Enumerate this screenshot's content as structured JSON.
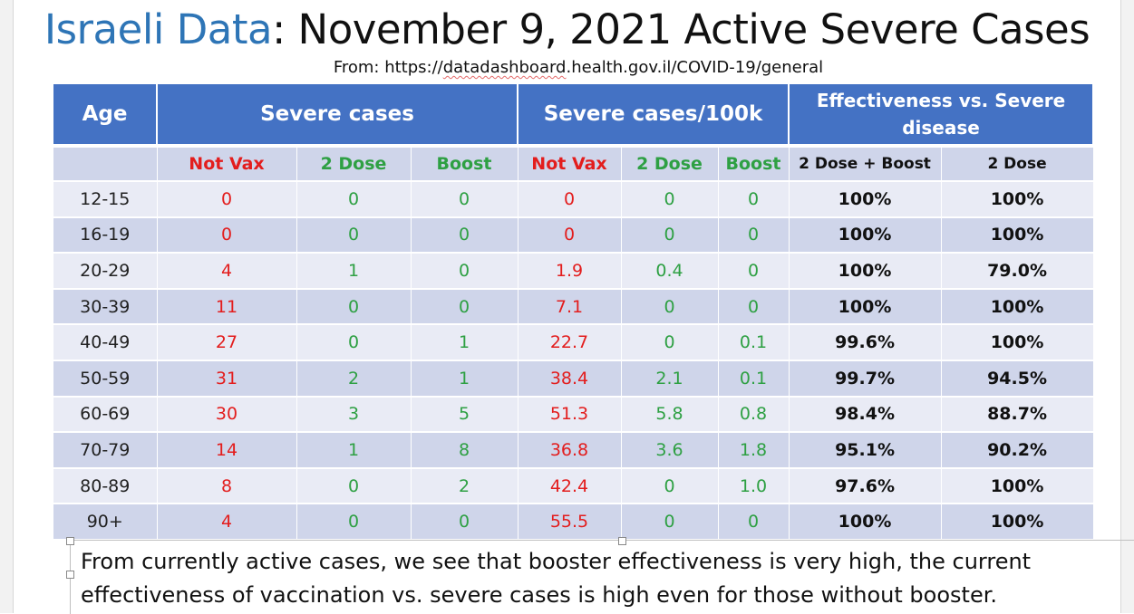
{
  "title": {
    "accent": "Israeli Data",
    "rest": ": November 9, 2021 Active Severe Cases"
  },
  "source": {
    "prefix": "From: https://",
    "url": "datadashboard",
    "suffix": ".health.gov.il/COVID-19/general"
  },
  "table": {
    "group_headers": {
      "age": "Age",
      "severe_cases": "Severe cases",
      "severe_per_100k": "Severe cases/100k",
      "effectiveness": "Effectiveness vs. Severe disease"
    },
    "sub_headers": {
      "not_vax": "Not Vax",
      "two_dose": "2 Dose",
      "boost": "Boost",
      "eff_dose_boost": "2 Dose + Boost",
      "eff_two_dose": "2 Dose"
    },
    "rows": [
      [
        "12-15",
        "0",
        "0",
        "0",
        "0",
        "0",
        "0",
        "100%",
        "100%"
      ],
      [
        "16-19",
        "0",
        "0",
        "0",
        "0",
        "0",
        "0",
        "100%",
        "100%"
      ],
      [
        "20-29",
        "4",
        "1",
        "0",
        "1.9",
        "0.4",
        "0",
        "100%",
        "79.0%"
      ],
      [
        "30-39",
        "11",
        "0",
        "0",
        "7.1",
        "0",
        "0",
        "100%",
        "100%"
      ],
      [
        "40-49",
        "27",
        "0",
        "1",
        "22.7",
        "0",
        "0.1",
        "99.6%",
        "100%"
      ],
      [
        "50-59",
        "31",
        "2",
        "1",
        "38.4",
        "2.1",
        "0.1",
        "99.7%",
        "94.5%"
      ],
      [
        "60-69",
        "30",
        "3",
        "5",
        "51.3",
        "5.8",
        "0.8",
        "98.4%",
        "88.7%"
      ],
      [
        "70-79",
        "14",
        "1",
        "8",
        "36.8",
        "3.6",
        "1.8",
        "95.1%",
        "90.2%"
      ],
      [
        "80-89",
        "8",
        "0",
        "2",
        "42.4",
        "0",
        "1.0",
        "97.6%",
        "100%"
      ],
      [
        "90+",
        "4",
        "0",
        "0",
        "55.5",
        "0",
        "0",
        "100%",
        "100%"
      ]
    ]
  },
  "conclusion": "From currently active cases, we see that booster effectiveness is very high, the current effectiveness of vaccination vs. severe cases is high even for those without booster.",
  "colors": {
    "header_blue": "#4472c4",
    "not_vax_red": "#e31d1d",
    "vax_green": "#2ea043",
    "title_accent": "#2e75b6"
  }
}
